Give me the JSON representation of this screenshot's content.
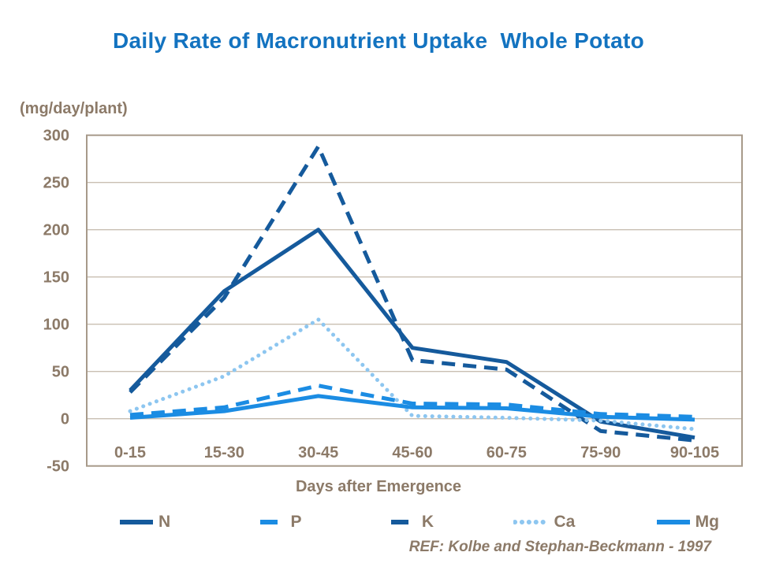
{
  "title": "Daily Rate of Macronutrient Uptake  Whole Potato",
  "y_unit_label": "(mg/day/plant)",
  "x_axis_label": "Days after Emergence",
  "reference": "REF: Kolbe and Stephan-Beckmann - 1997",
  "colors": {
    "title": "#1373C0",
    "axis_text": "#8C7A68",
    "gridline": "#C9BFB2",
    "plot_border": "#A79A8A",
    "dark_blue": "#155A9C",
    "bright_blue": "#1B8CE3",
    "light_blue": "#8DC6F0",
    "background": "#FFFFFF"
  },
  "chart_data": {
    "type": "line",
    "title": "Daily Rate of Macronutrient Uptake  Whole Potato",
    "xlabel": "Days after Emergence",
    "ylabel": "(mg/day/plant)",
    "categories": [
      "0-15",
      "15-30",
      "30-45",
      "45-60",
      "60-75",
      "75-90",
      "90-105"
    ],
    "series": [
      {
        "name": "N",
        "color_key": "dark_blue",
        "style": "solid",
        "values": [
          30,
          135,
          200,
          75,
          60,
          -3,
          -20
        ]
      },
      {
        "name": "P",
        "color_key": "bright_blue",
        "style": "dashed",
        "values": [
          4,
          12,
          35,
          16,
          15,
          5,
          2
        ]
      },
      {
        "name": "K",
        "color_key": "dark_blue",
        "style": "dashed",
        "values": [
          28,
          128,
          288,
          62,
          52,
          -13,
          -23
        ]
      },
      {
        "name": "Ca",
        "color_key": "light_blue",
        "style": "dotted",
        "values": [
          8,
          45,
          105,
          3,
          1,
          -2,
          -11
        ]
      },
      {
        "name": "Mg",
        "color_key": "bright_blue",
        "style": "solid",
        "values": [
          1,
          8,
          24,
          12,
          11,
          2,
          -1
        ]
      }
    ],
    "ylim": [
      -50,
      300
    ],
    "yticks": [
      300,
      250,
      200,
      150,
      100,
      50,
      0,
      -50
    ],
    "ytick_step": 50,
    "grid": true,
    "legend_position": "bottom"
  }
}
